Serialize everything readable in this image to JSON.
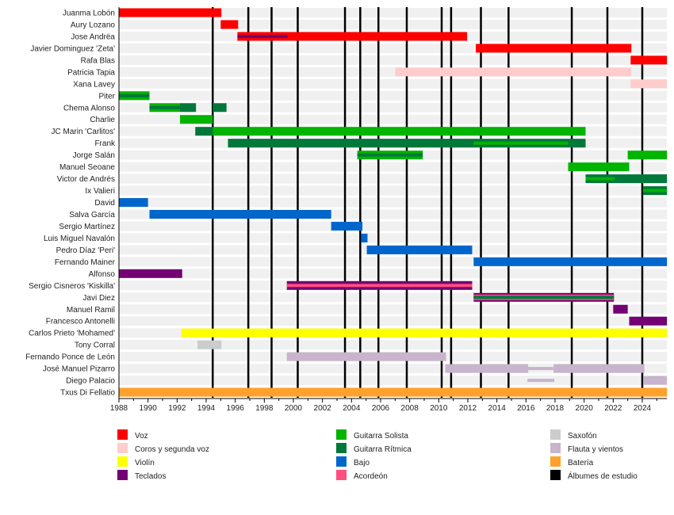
{
  "chart_data": {
    "type": "timeline",
    "title": "",
    "xlim": [
      1988,
      2025.7
    ],
    "x_ticks": [
      1988,
      1990,
      1992,
      1994,
      1996,
      1998,
      2000,
      2002,
      2004,
      2006,
      2008,
      2010,
      2012,
      2014,
      2016,
      2018,
      2020,
      2022,
      2024
    ],
    "colors": {
      "voz": "#ff0000",
      "coros": "#ffcccc",
      "violin": "#ffff00",
      "teclados": "#740074",
      "solista": "#00b400",
      "ritmica": "#00783a",
      "bajo": "#0066cc",
      "acordeon": "#ff4f7f",
      "saxofon": "#cccccc",
      "flauta": "#c8b4cc",
      "bateria": "#ffa12b",
      "album": "#000000"
    },
    "legend": [
      {
        "role": "voz",
        "label": "Voz"
      },
      {
        "role": "coros",
        "label": "Coros y segunda voz"
      },
      {
        "role": "violin",
        "label": "Violín"
      },
      {
        "role": "teclados",
        "label": "Teclados"
      },
      {
        "role": "solista",
        "label": "Guitarra Solista"
      },
      {
        "role": "ritmica",
        "label": "Guitarra Rítmica"
      },
      {
        "role": "bajo",
        "label": "Bajo"
      },
      {
        "role": "acordeon",
        "label": "Acordeón"
      },
      {
        "role": "saxofon",
        "label": "Saxofón"
      },
      {
        "role": "flauta",
        "label": "Flauta y vientos"
      },
      {
        "role": "bateria",
        "label": "Batería"
      },
      {
        "role": "album",
        "label": "Álbumes de estudio"
      }
    ],
    "albums": [
      1994.45,
      1996.9,
      1998.5,
      2000.3,
      2003.55,
      2004.6,
      2005.85,
      2007.8,
      2010.2,
      2010.85,
      2012.9,
      2014.8,
      2019.15,
      2021.6,
      2024.0
    ],
    "members": [
      {
        "name": "Juanma Lobón",
        "bars": [
          {
            "s": 1988,
            "e": 1995.05,
            "r": "voz"
          }
        ]
      },
      {
        "name": "Aury Lozano",
        "bars": [
          {
            "s": 1995,
            "e": 1996.2,
            "r": "voz"
          }
        ]
      },
      {
        "name": "Jose Andrëa",
        "bars": [
          {
            "s": 1996.15,
            "e": 2011.95,
            "r": "voz"
          },
          {
            "s": 1996.15,
            "e": 1999.6,
            "r": "teclados",
            "inner": true
          }
        ]
      },
      {
        "name": "Javier Dominguez 'Zeta'",
        "bars": [
          {
            "s": 2012.55,
            "e": 2023.25,
            "r": "voz"
          }
        ]
      },
      {
        "name": "Rafa Blas",
        "bars": [
          {
            "s": 2023.2,
            "e": 2025.7,
            "r": "voz"
          }
        ]
      },
      {
        "name": "Patricia Tapia",
        "bars": [
          {
            "s": 2007,
            "e": 2023.25,
            "r": "coros"
          }
        ]
      },
      {
        "name": "Xana Lavey",
        "bars": [
          {
            "s": 2023.2,
            "e": 2025.7,
            "r": "coros"
          }
        ]
      },
      {
        "name": "Piter",
        "bars": [
          {
            "s": 1988,
            "e": 1990.1,
            "r": "solista"
          },
          {
            "s": 1988,
            "e": 1990.1,
            "r": "ritmica",
            "inner": true
          }
        ]
      },
      {
        "name": "Chema Alonso",
        "bars": [
          {
            "s": 1990.1,
            "e": 1992.2,
            "r": "solista"
          },
          {
            "s": 1990.1,
            "e": 1992.2,
            "r": "ritmica",
            "inner": true
          },
          {
            "s": 1992.2,
            "e": 1993.3,
            "r": "ritmica"
          },
          {
            "s": 1994.45,
            "e": 1995.4,
            "r": "ritmica"
          }
        ]
      },
      {
        "name": "Charlie",
        "bars": [
          {
            "s": 1992.2,
            "e": 1994.45,
            "r": "solista"
          }
        ]
      },
      {
        "name": "JC Marin 'Carlitos'",
        "bars": [
          {
            "s": 1993.25,
            "e": 1994.45,
            "r": "ritmica"
          },
          {
            "s": 1994.45,
            "e": 2020.1,
            "r": "solista"
          }
        ]
      },
      {
        "name": "Frank",
        "bars": [
          {
            "s": 1995.5,
            "e": 2020.1,
            "r": "ritmica"
          },
          {
            "s": 2012.4,
            "e": 2018.9,
            "r": "solista",
            "inner": true
          }
        ]
      },
      {
        "name": "Jorge Salán",
        "bars": [
          {
            "s": 2004.4,
            "e": 2008.9,
            "r": "solista"
          },
          {
            "s": 2004.4,
            "e": 2008.9,
            "r": "ritmica",
            "inner": true
          },
          {
            "s": 2023,
            "e": 2025.7,
            "r": "solista"
          }
        ]
      },
      {
        "name": "Manuel Seoane",
        "bars": [
          {
            "s": 2018.9,
            "e": 2023.1,
            "r": "solista"
          }
        ]
      },
      {
        "name": "Victor de Andrés",
        "bars": [
          {
            "s": 2020.1,
            "e": 2025.7,
            "r": "ritmica"
          },
          {
            "s": 2020.1,
            "e": 2022.1,
            "r": "solista",
            "inner": true
          }
        ]
      },
      {
        "name": "Ix Valieri",
        "bars": [
          {
            "s": 2024.05,
            "e": 2025.7,
            "r": "ritmica"
          },
          {
            "s": 2024.05,
            "e": 2025.7,
            "r": "solista",
            "inner": true
          }
        ]
      },
      {
        "name": "David",
        "bars": [
          {
            "s": 1988,
            "e": 1990,
            "r": "bajo"
          }
        ]
      },
      {
        "name": "Salva García",
        "bars": [
          {
            "s": 1990.1,
            "e": 2002.6,
            "r": "bajo"
          }
        ]
      },
      {
        "name": "Sergio Martínez",
        "bars": [
          {
            "s": 2002.6,
            "e": 2004.75,
            "r": "bajo"
          }
        ]
      },
      {
        "name": "Luis Miguel Navalón",
        "bars": [
          {
            "s": 2004.65,
            "e": 2005.1,
            "r": "bajo"
          }
        ]
      },
      {
        "name": "Pedro Díaz 'Peri'",
        "bars": [
          {
            "s": 2005.05,
            "e": 2012.3,
            "r": "bajo"
          }
        ]
      },
      {
        "name": "Fernando Mainer",
        "bars": [
          {
            "s": 2012.4,
            "e": 2025.7,
            "r": "bajo"
          }
        ]
      },
      {
        "name": "Alfonso",
        "bars": [
          {
            "s": 1988,
            "e": 1992.35,
            "r": "teclados"
          }
        ]
      },
      {
        "name": "Sergio Cisneros 'Kiskilla'",
        "bars": [
          {
            "s": 1999.55,
            "e": 2012.3,
            "r": "teclados"
          },
          {
            "s": 1999.55,
            "e": 2012.3,
            "r": "acordeon",
            "inner": true
          }
        ]
      },
      {
        "name": "Javi Diez",
        "bars": [
          {
            "s": 2012.4,
            "e": 2022.05,
            "r": "teclados"
          },
          {
            "s": 2012.4,
            "e": 2022.05,
            "r": "acordeon",
            "mid": true
          },
          {
            "s": 2012.4,
            "e": 2022.05,
            "r": "ritmica",
            "inner": true
          }
        ]
      },
      {
        "name": "Manuel Ramil",
        "bars": [
          {
            "s": 2022,
            "e": 2023,
            "r": "teclados"
          }
        ]
      },
      {
        "name": "Francesco Antonelli",
        "bars": [
          {
            "s": 2023.1,
            "e": 2025.7,
            "r": "teclados"
          }
        ]
      },
      {
        "name": "Carlos Prieto 'Mohamed'",
        "bars": [
          {
            "s": 1992.3,
            "e": 2025.7,
            "r": "violin"
          }
        ]
      },
      {
        "name": "Tony Corral",
        "bars": [
          {
            "s": 1993.4,
            "e": 1995.05,
            "r": "saxofon"
          }
        ]
      },
      {
        "name": "Fernando Ponce de León",
        "bars": [
          {
            "s": 1999.55,
            "e": 2010.5,
            "r": "flauta"
          }
        ]
      },
      {
        "name": "José Manuel Pizarro",
        "bars": [
          {
            "s": 2010.45,
            "e": 2016.15,
            "r": "flauta"
          },
          {
            "s": 2016.15,
            "e": 2017.9,
            "r": "flauta",
            "inner": true
          },
          {
            "s": 2017.9,
            "e": 2024.15,
            "r": "flauta"
          }
        ]
      },
      {
        "name": "Diego Palacio",
        "bars": [
          {
            "s": 2016.1,
            "e": 2017.95,
            "r": "flauta",
            "inner": true
          },
          {
            "s": 2024.1,
            "e": 2025.7,
            "r": "flauta"
          }
        ]
      },
      {
        "name": "Txus Di Fellatio",
        "bars": [
          {
            "s": 1988,
            "e": 2025.7,
            "r": "bateria"
          }
        ]
      }
    ]
  }
}
